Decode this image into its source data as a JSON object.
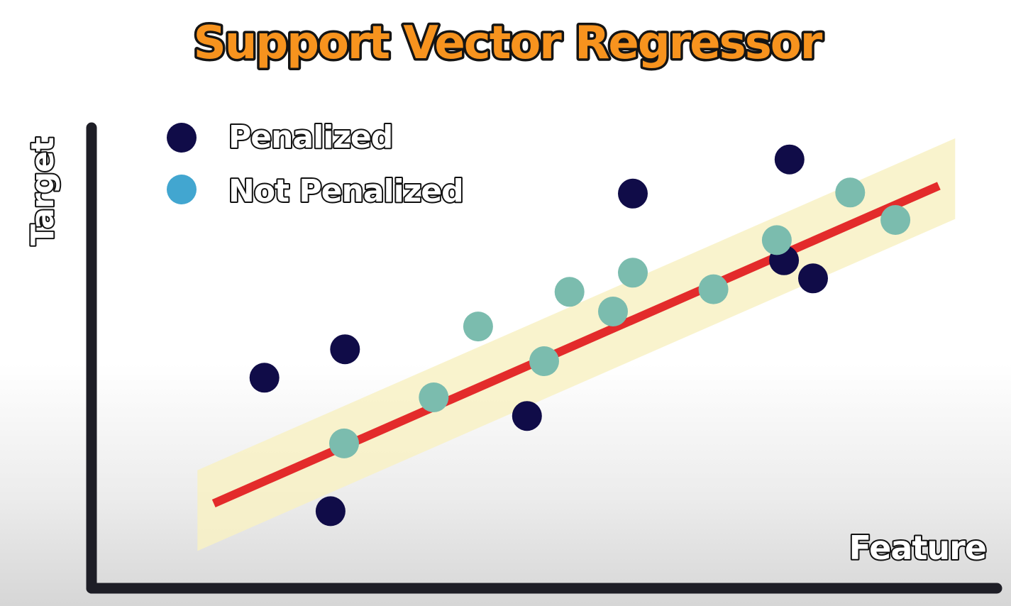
{
  "colors": {
    "penalized": "#100c48",
    "not_penalized": "#42a6d0",
    "not_penalized_in_band": "#7bbcae",
    "regression_line": "#e32b2b",
    "epsilon_band": "#f8f1c4",
    "axis": "#1e1e26",
    "title_fill": "#f7931e"
  },
  "chart_data": {
    "type": "scatter",
    "title": "Support Vector Regressor",
    "xlabel": "Feature",
    "ylabel": "Target",
    "xlim": [
      0,
      100
    ],
    "ylim": [
      0,
      100
    ],
    "grid": false,
    "legend_placement": "top-left",
    "series": [
      {
        "name": "Penalized",
        "color_key": "penalized",
        "points": [
          {
            "x": 19.1,
            "y": 40.7
          },
          {
            "x": 28.0,
            "y": 46.2
          },
          {
            "x": 26.4,
            "y": 14.9
          },
          {
            "x": 48.1,
            "y": 33.3
          },
          {
            "x": 59.8,
            "y": 76.3
          },
          {
            "x": 77.1,
            "y": 82.9
          },
          {
            "x": 76.5,
            "y": 63.4
          },
          {
            "x": 79.7,
            "y": 59.9
          }
        ]
      },
      {
        "name": "Not Penalized",
        "color_key": "not_penalized_in_band",
        "points": [
          {
            "x": 27.9,
            "y": 28.0
          },
          {
            "x": 37.8,
            "y": 36.9
          },
          {
            "x": 42.7,
            "y": 50.6
          },
          {
            "x": 50.0,
            "y": 43.9
          },
          {
            "x": 52.8,
            "y": 57.3
          },
          {
            "x": 59.8,
            "y": 61.0
          },
          {
            "x": 57.6,
            "y": 53.5
          },
          {
            "x": 68.7,
            "y": 57.8
          },
          {
            "x": 75.7,
            "y": 67.3
          },
          {
            "x": 83.8,
            "y": 76.5
          },
          {
            "x": 88.8,
            "y": 71.2
          }
        ]
      }
    ],
    "regression_line": {
      "x": [
        13.5,
        93.6
      ],
      "y": [
        16.4,
        77.8
      ]
    },
    "epsilon_band": {
      "half_width_y": 7.8
    }
  }
}
